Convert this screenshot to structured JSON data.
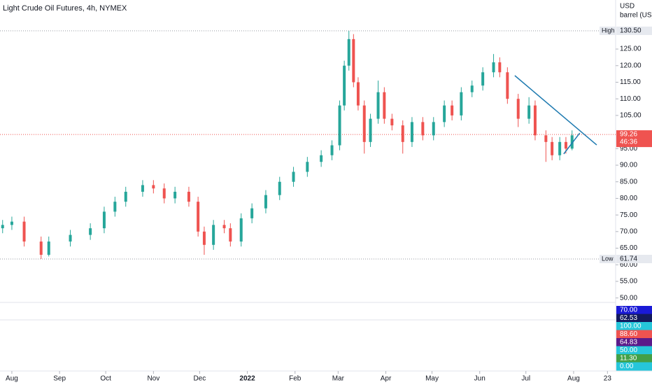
{
  "chart_data": {
    "type": "candlestick",
    "title": "Light Crude Oil Futures, 4h, NYMEX",
    "currency": "USD",
    "unit": "barrel (US)",
    "up_color": "#26a69a",
    "down_color": "#ef5350",
    "x": [
      -6,
      0,
      8,
      19,
      24,
      38,
      51,
      60,
      67,
      74,
      85,
      92,
      99,
      106,
      115,
      121,
      125,
      131,
      138,
      142,
      149,
      156,
      165,
      174,
      183,
      192,
      201,
      208,
      213,
      216,
      219,
      222,
      225,
      229,
      233,
      238,
      242,
      247,
      254,
      260,
      267,
      274,
      281,
      286,
      292,
      299,
      306,
      313,
      317,
      322,
      329,
      336,
      340,
      347,
      351,
      356,
      360,
      364
    ],
    "open": [
      71,
      72,
      73,
      67,
      63,
      67,
      69,
      71,
      76,
      79,
      82,
      84,
      83,
      80,
      82,
      79,
      70,
      66,
      72,
      71,
      67,
      74,
      77,
      81,
      85,
      88,
      91,
      93,
      96,
      108,
      120,
      128,
      115,
      108,
      97,
      104,
      112,
      104,
      102,
      97,
      103,
      99,
      103,
      108,
      105,
      112,
      114,
      118,
      121,
      118,
      110,
      104,
      108,
      99,
      97,
      93,
      97,
      95
    ],
    "high": [
      73.5,
      74.5,
      74.5,
      68.5,
      68.5,
      70.5,
      72.5,
      77.5,
      80.5,
      83.5,
      85.5,
      85.5,
      84.5,
      83.5,
      83.5,
      80.5,
      71.5,
      73.5,
      73.5,
      72.5,
      75.5,
      78.5,
      82.5,
      86.5,
      89.5,
      92.5,
      94.5,
      97.5,
      109.5,
      121.5,
      130.5,
      129.5,
      116.5,
      109.5,
      105.5,
      115.5,
      113.5,
      105.5,
      103.5,
      104.5,
      104.5,
      104.5,
      109.5,
      109.5,
      113.5,
      115.5,
      119.5,
      123.5,
      122.5,
      119.5,
      111.5,
      110.5,
      109.5,
      100.5,
      98.5,
      98.5,
      98.5,
      100.5
    ],
    "low": [
      69.5,
      70.5,
      65.5,
      61.74,
      62.5,
      65.5,
      67.5,
      69.5,
      74.5,
      77.5,
      80.5,
      81.5,
      78.5,
      78.5,
      77.5,
      68.5,
      63,
      64.5,
      69.5,
      65.5,
      65.5,
      72.5,
      75.5,
      79.5,
      83.5,
      86.5,
      89.5,
      91.5,
      94.5,
      106.5,
      118.5,
      113.5,
      106.5,
      93.5,
      95.5,
      102.5,
      102.5,
      100.5,
      93.5,
      95.5,
      97.5,
      97.5,
      101.5,
      103.5,
      103.5,
      110.5,
      112.5,
      116.5,
      116.5,
      108.5,
      101.5,
      102.5,
      97.5,
      91,
      91.5,
      91.5,
      93.5,
      94.5
    ],
    "close": [
      72,
      73,
      67,
      63,
      67,
      69,
      71,
      76,
      79,
      82,
      84,
      83,
      80,
      82,
      79,
      70,
      66,
      72,
      71,
      67,
      74,
      77,
      81,
      85,
      88,
      91,
      93,
      96,
      108,
      120,
      128,
      115,
      108,
      97,
      104,
      112,
      104,
      102,
      97,
      103,
      99,
      103,
      108,
      105,
      112,
      114,
      118,
      121,
      118,
      110,
      104,
      108,
      99,
      97,
      93,
      97,
      95,
      99
    ],
    "xlim": [
      -7.7,
      392.3
    ],
    "xticks": [
      {
        "value": 0,
        "label": "Aug"
      },
      {
        "value": 31,
        "label": "Sep"
      },
      {
        "value": 61,
        "label": "Oct"
      },
      {
        "value": 92,
        "label": "Nov"
      },
      {
        "value": 122,
        "label": "Dec"
      },
      {
        "value": 153,
        "label": "2022"
      },
      {
        "value": 184,
        "label": "Feb"
      },
      {
        "value": 212,
        "label": "Mar"
      },
      {
        "value": 243,
        "label": "Apr"
      },
      {
        "value": 273,
        "label": "May"
      },
      {
        "value": 304,
        "label": "Jun"
      },
      {
        "value": 334,
        "label": "Jul"
      },
      {
        "value": 365,
        "label": "Aug"
      },
      {
        "value": 387,
        "label": "23"
      }
    ],
    "ylim": [
      48.66,
      139.78
    ],
    "yticks": [
      {
        "value": 50,
        "label": "50.00"
      },
      {
        "value": 55,
        "label": "55.00"
      },
      {
        "value": 60,
        "label": "60.00"
      },
      {
        "value": 65,
        "label": "65.00"
      },
      {
        "value": 70,
        "label": "70.00"
      },
      {
        "value": 75,
        "label": "75.00"
      },
      {
        "value": 80,
        "label": "80.00"
      },
      {
        "value": 85,
        "label": "85.00"
      },
      {
        "value": 90,
        "label": "90.00"
      },
      {
        "value": 95,
        "label": "95.00"
      },
      {
        "value": 105,
        "label": "105.00"
      },
      {
        "value": 110,
        "label": "110.00"
      },
      {
        "value": 115,
        "label": "115.00"
      },
      {
        "value": 120,
        "label": "120.00"
      },
      {
        "value": 125,
        "label": "125.00"
      }
    ],
    "grid": false,
    "markers": [
      {
        "name": "High",
        "value": 130.5,
        "label": "130.50"
      },
      {
        "name": "Low",
        "value": 61.74,
        "label": "61.74"
      }
    ],
    "last_price": {
      "value": 99.26,
      "label": "99.26",
      "countdown": "46:36",
      "color": "#ef5350"
    },
    "trendlines": [
      {
        "x": [
          326.8,
          380
        ],
        "y": [
          117,
          96.1
        ],
        "color": "#1e7ab0"
      },
      {
        "x": [
          358.6,
          369
        ],
        "y": [
          93.4,
          99.7
        ],
        "color": "#1e7ab0"
      }
    ],
    "indicator_labels": [
      {
        "value": 70,
        "label": "70.00",
        "color": "#1a1ad6"
      },
      {
        "value": 62.53,
        "label": "62.53",
        "color": "#131a5e"
      },
      {
        "value": 100,
        "label": "100.00",
        "color": "#26c6da"
      },
      {
        "value": 88.6,
        "label": "88.60",
        "color": "#ef5350"
      },
      {
        "value": 64.83,
        "label": "64.83",
        "color": "#5b1a8a"
      },
      {
        "value": 50,
        "label": "50.00",
        "color": "#26c6da"
      },
      {
        "value": 11.3,
        "label": "11.30",
        "color": "#43a047"
      },
      {
        "value": 0,
        "label": "0.00",
        "color": "#26c6da"
      }
    ]
  }
}
